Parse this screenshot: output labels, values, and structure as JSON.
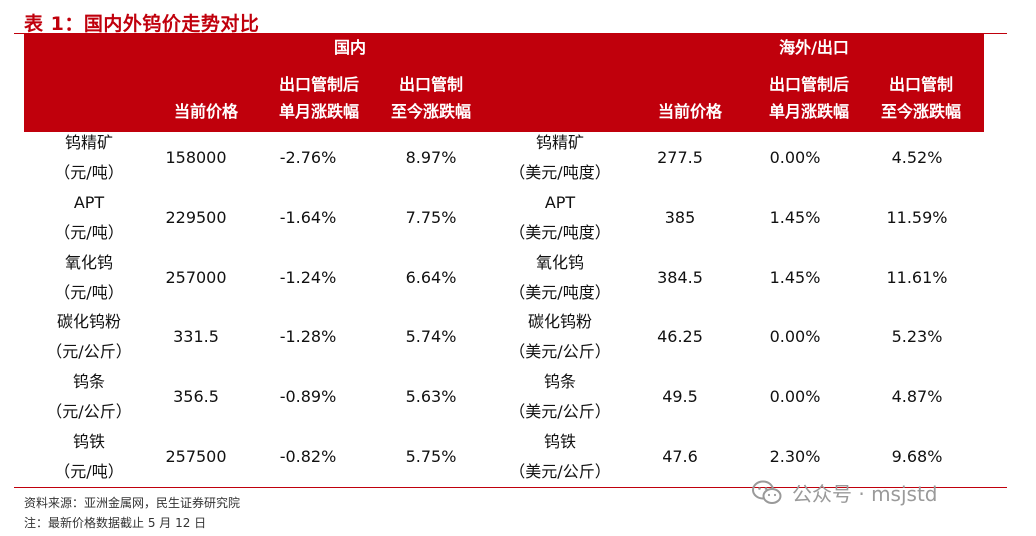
{
  "title": "表 1：国内外钨价走势对比",
  "header": {
    "domestic": "国内",
    "overseas": "海外/出口",
    "col_price": "当前价格",
    "col_month_l1": "出口管制后",
    "col_month_l2": "单月涨跌幅",
    "col_total_l1": "出口管制",
    "col_total_l2": "至今涨跌幅"
  },
  "rows": [
    {
      "d_name1": "钨精矿",
      "d_unit": "（元/吨）",
      "d_price": "158000",
      "d_month": "-2.76%",
      "d_total": "8.97%",
      "o_name1": "钨精矿",
      "o_unit": "（美元/吨度）",
      "o_price": "277.5",
      "o_month": "0.00%",
      "o_total": "4.52%"
    },
    {
      "d_name1": "APT",
      "d_unit": "（元/吨）",
      "d_price": "229500",
      "d_month": "-1.64%",
      "d_total": "7.75%",
      "o_name1": "APT",
      "o_unit": "（美元/吨度）",
      "o_price": "385",
      "o_month": "1.45%",
      "o_total": "11.59%"
    },
    {
      "d_name1": "氧化钨",
      "d_unit": "（元/吨）",
      "d_price": "257000",
      "d_month": "-1.24%",
      "d_total": "6.64%",
      "o_name1": "氧化钨",
      "o_unit": "（美元/吨度）",
      "o_price": "384.5",
      "o_month": "1.45%",
      "o_total": "11.61%"
    },
    {
      "d_name1": "碳化钨粉",
      "d_unit": "（元/公斤）",
      "d_price": "331.5",
      "d_month": "-1.28%",
      "d_total": "5.74%",
      "o_name1": "碳化钨粉",
      "o_unit": "（美元/公斤）",
      "o_price": "46.25",
      "o_month": "0.00%",
      "o_total": "5.23%"
    },
    {
      "d_name1": "钨条",
      "d_unit": "（元/公斤）",
      "d_price": "356.5",
      "d_month": "-0.89%",
      "d_total": "5.63%",
      "o_name1": "钨条",
      "o_unit": "（美元/公斤）",
      "o_price": "49.5",
      "o_month": "0.00%",
      "o_total": "4.87%"
    },
    {
      "d_name1": "钨铁",
      "d_unit": "（元/吨）",
      "d_price": "257500",
      "d_month": "-0.82%",
      "d_total": "5.75%",
      "o_name1": "钨铁",
      "o_unit": "（美元/公斤）",
      "o_price": "47.6",
      "o_month": "2.30%",
      "o_total": "9.68%"
    }
  ],
  "footer": {
    "source": "资料来源：亚洲金属网，民生证券研究院",
    "note": "注：最新价格数据截止 5 月 12 日"
  },
  "watermark": {
    "text": "公众号 · msjstd",
    "icon": "wechat-icon"
  }
}
